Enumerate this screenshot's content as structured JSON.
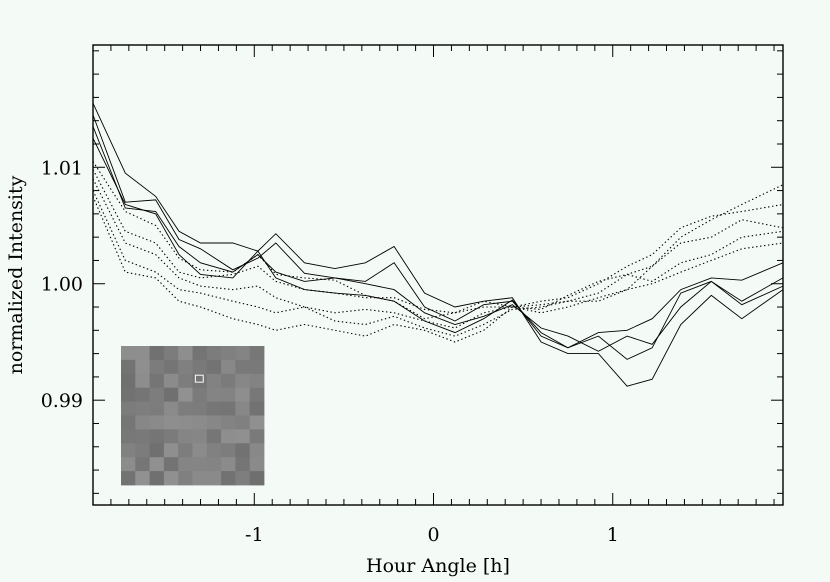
{
  "chart_data": {
    "type": "line",
    "title": "",
    "xlabel": "Hour Angle [h]",
    "ylabel": "normalized Intensity",
    "xlim": [
      -1.9,
      1.95
    ],
    "ylim": [
      0.981,
      1.0205
    ],
    "x_ticks": [
      -1,
      0,
      1
    ],
    "x_tick_labels": [
      "-1",
      "0",
      "1"
    ],
    "y_ticks": [
      0.99,
      1.0,
      1.01
    ],
    "y_tick_labels": [
      "0.99",
      "1.00",
      "1.01"
    ],
    "grid": false,
    "legend": "none",
    "line_color": "#000000",
    "x": [
      -1.9,
      -1.72,
      -1.55,
      -1.42,
      -1.3,
      -1.12,
      -0.98,
      -0.88,
      -0.72,
      -0.55,
      -0.38,
      -0.22,
      -0.05,
      0.12,
      0.28,
      0.44,
      0.6,
      0.75,
      0.92,
      1.08,
      1.22,
      1.38,
      1.55,
      1.72,
      1.95
    ],
    "series": [
      {
        "style": "solid",
        "values": [
          1.0155,
          1.0095,
          1.0075,
          1.0045,
          1.0035,
          1.0035,
          1.0028,
          1.0043,
          1.0018,
          1.0013,
          1.0018,
          1.0032,
          0.9992,
          0.998,
          0.9985,
          0.9988,
          0.995,
          0.994,
          0.994,
          0.9912,
          0.9918,
          0.9965,
          0.999,
          0.997,
          0.9995
        ]
      },
      {
        "style": "solid",
        "values": [
          1.0145,
          1.007,
          1.0072,
          1.0038,
          1.003,
          1.0012,
          1.0022,
          1.0035,
          1.0009,
          1.0005,
          1.0002,
          1.0018,
          0.998,
          0.9968,
          0.9982,
          0.9985,
          0.9958,
          0.9945,
          0.9958,
          0.996,
          0.997,
          0.9995,
          1.0005,
          1.0003,
          1.0018
        ]
      },
      {
        "style": "solid",
        "values": [
          1.0135,
          1.0065,
          1.0062,
          1.0032,
          1.0018,
          1.001,
          1.0025,
          1.001,
          1.0002,
          1.0005,
          1.0,
          0.9995,
          0.9975,
          0.9965,
          0.9972,
          0.9982,
          0.9962,
          0.9955,
          0.9942,
          0.9955,
          0.9948,
          0.998,
          1.0002,
          0.9985,
          1.0005
        ]
      },
      {
        "style": "solid",
        "values": [
          1.0125,
          1.0068,
          1.006,
          1.0025,
          1.0008,
          1.0005,
          1.0028,
          1.0005,
          0.9995,
          0.9992,
          0.999,
          0.9985,
          0.9968,
          0.9958,
          0.997,
          0.9986,
          0.9955,
          0.9945,
          0.9955,
          0.9935,
          0.9945,
          0.9992,
          1.0002,
          0.9982,
          0.9998
        ]
      },
      {
        "style": "dotted",
        "values": [
          1.0105,
          1.0062,
          1.005,
          1.0022,
          1.0012,
          1.001,
          1.0025,
          1.0008,
          1.0005,
          1.0003,
          0.999,
          0.9985,
          0.997,
          0.9975,
          0.998,
          0.998,
          0.9978,
          0.999,
          1.0002,
          1.0008,
          1.0015,
          1.004,
          1.0055,
          1.0068,
          1.0085
        ]
      },
      {
        "style": "dotted",
        "values": [
          1.0098,
          1.0045,
          1.0035,
          1.001,
          1.0005,
          1.0008,
          1.0015,
          1.0002,
          0.9995,
          0.9992,
          0.9988,
          0.9988,
          0.9978,
          0.9975,
          0.9985,
          0.998,
          0.9985,
          0.9988,
          1.0,
          1.0015,
          1.0025,
          1.0048,
          1.0058,
          1.0062,
          1.0068
        ]
      },
      {
        "style": "dotted",
        "values": [
          1.009,
          1.0035,
          1.0025,
          1.0005,
          0.9998,
          0.9995,
          0.9998,
          0.9988,
          0.998,
          0.9975,
          0.9978,
          0.9975,
          0.9968,
          0.9962,
          0.9975,
          0.998,
          0.9982,
          0.9985,
          0.9985,
          0.9995,
          1.0015,
          1.0035,
          1.004,
          1.0055,
          1.0048
        ]
      },
      {
        "style": "dotted",
        "values": [
          1.008,
          1.002,
          1.001,
          0.9995,
          0.9992,
          0.9985,
          0.998,
          0.9975,
          0.998,
          0.9968,
          0.9965,
          0.9972,
          0.9962,
          0.9955,
          0.9965,
          0.9978,
          0.998,
          0.9985,
          0.9992,
          1.0008,
          1.0002,
          1.0018,
          1.0025,
          1.004,
          1.0045
        ]
      },
      {
        "style": "dotted",
        "values": [
          1.0075,
          1.001,
          1.0005,
          0.9985,
          0.998,
          0.997,
          0.9965,
          0.996,
          0.9965,
          0.996,
          0.9955,
          0.9965,
          0.996,
          0.995,
          0.996,
          0.998,
          0.9975,
          0.998,
          0.9988,
          0.9995,
          1.0,
          1.001,
          1.002,
          1.003,
          1.0035
        ]
      }
    ],
    "inset": {
      "type": "heatmap",
      "rows": 10,
      "cols": 10,
      "colormap": "gray",
      "highlight_cell": [
        2,
        5
      ],
      "highlight_color": "#ffffff"
    }
  }
}
